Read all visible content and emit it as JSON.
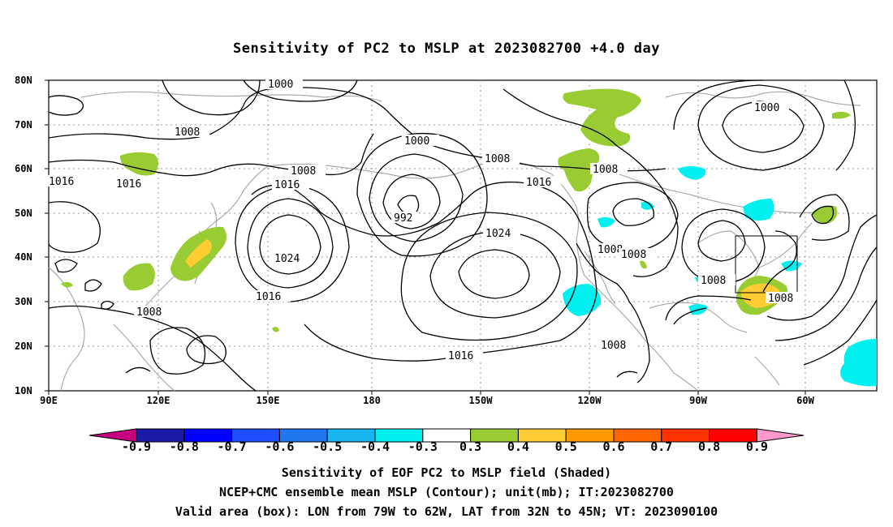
{
  "title": "Sensitivity of PC2 to MSLP at 2023082700 +4.0 day",
  "lat_labels": [
    "80N",
    "70N",
    "60N",
    "50N",
    "40N",
    "30N",
    "20N",
    "10N"
  ],
  "lon_labels": [
    "90E",
    "120E",
    "150E",
    "180",
    "150W",
    "120W",
    "90W",
    "60W"
  ],
  "colorbar": {
    "labels": [
      "-0.9",
      "-0.8",
      "-0.7",
      "-0.6",
      "-0.5",
      "-0.4",
      "-0.3",
      "0.3",
      "0.4",
      "0.5",
      "0.6",
      "0.7",
      "0.8",
      "0.9"
    ],
    "colors": [
      "#c6007f",
      "#1a1aa6",
      "#0000ff",
      "#1e4fff",
      "#1f78f0",
      "#17b4ef",
      "#00f0f0",
      "#ffffff",
      "#99cc33",
      "#ffcc33",
      "#ff9900",
      "#ff6600",
      "#ff3300",
      "#ff0000",
      "#ff99cc"
    ]
  },
  "contour_labels": {
    "c1000a": "1000",
    "c1000b": "1000",
    "c1000c": "1000",
    "c1008a": "1008",
    "c1008b": "1008",
    "c1008c": "1008",
    "c1008d": "1008",
    "c1008e": "1008",
    "c1008f": "1008",
    "c1008g": "1008",
    "c1008h": "1008",
    "c1008i": "1008",
    "c1008j": "1008",
    "c1016a": "1016",
    "c1016b": "1016",
    "c1016c": "1016",
    "c1016d": "1016",
    "c1016e": "1016",
    "c1016f": "1016",
    "c1024a": "1024",
    "c1024b": "1024",
    "c992": "992"
  },
  "captions": [
    "Sensitivity of EOF PC2 to MSLP field (Shaded)",
    "NCEP+CMC ensemble mean MSLP (Contour); unit(mb); IT:2023082700",
    "Valid area (box): LON from 79W to 62W, LAT from 32N to 45N; VT: 2023090100"
  ]
}
